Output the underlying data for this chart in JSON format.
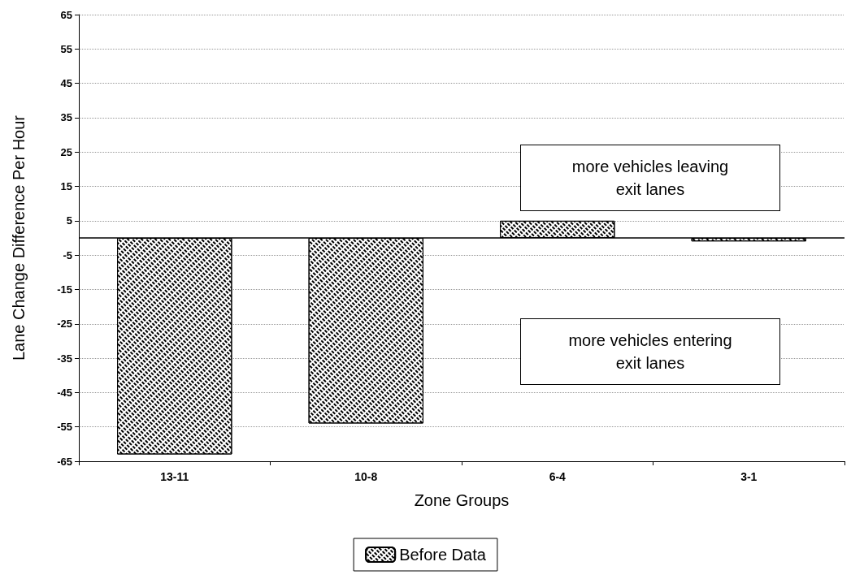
{
  "chart_data": {
    "type": "bar",
    "xlabel": "Zone Groups",
    "ylabel": "Lane Change Difference Per Hour",
    "categories": [
      "13-11",
      "10-8",
      "6-4",
      "3-1"
    ],
    "series": [
      {
        "name": "Before Data",
        "color": "#000000",
        "values": [
          -63,
          -54,
          5,
          -1
        ]
      }
    ],
    "ylim": [
      -65,
      65
    ],
    "yticks": [
      -65,
      -55,
      -45,
      -35,
      -25,
      -15,
      -5,
      5,
      15,
      25,
      35,
      45,
      55,
      65
    ],
    "grid": "y",
    "legend": "bottom",
    "annotations": [
      "more vehicles leaving\nexit lanes",
      "more vehicles entering\nexit lanes"
    ]
  }
}
